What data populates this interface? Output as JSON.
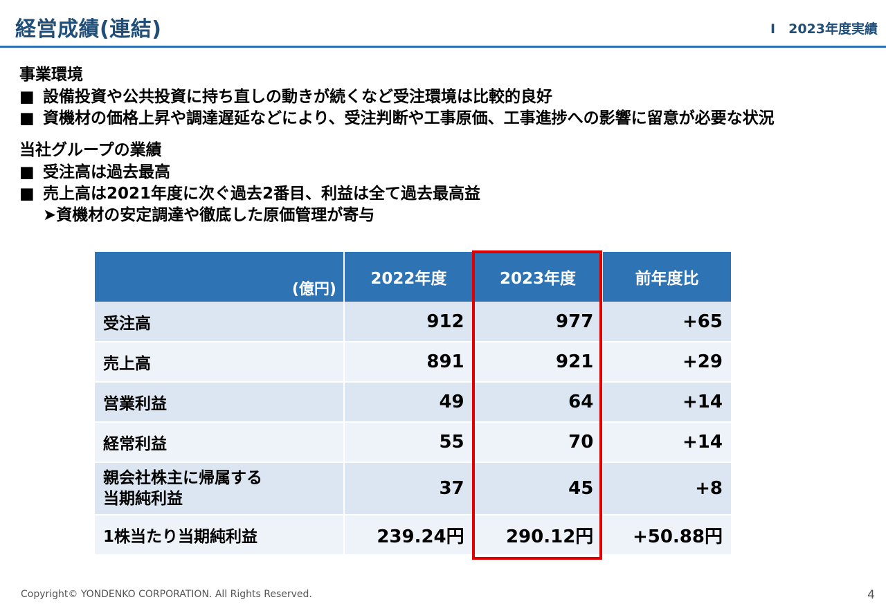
{
  "header": {
    "title": "経営成績(連結)",
    "section": "Ⅰ　2023年度実績"
  },
  "environment": {
    "heading": "事業環境",
    "bullet_mark": "■",
    "bullets": [
      "設備投資や公共投資に持ち直しの動きが続くなど受注環境は比較的良好",
      "資機材の価格上昇や調達遅延などにより、受注判断や工事原価、工事進捗への影響に留意が必要な状況"
    ]
  },
  "performance": {
    "heading": "当社グループの業績",
    "bullets": [
      "受注高は過去最高",
      "売上高は2021年度に次ぐ過去2番目、利益は全て過去最高益"
    ],
    "sub_bullet": "➤資機材の安定調達や徹底した原価管理が寄与"
  },
  "table": {
    "unit": "(億円)",
    "columns": [
      "2022年度",
      "2023年度",
      "前年度比"
    ],
    "highlight_column": "2023年度",
    "rows": [
      {
        "label": "受注高",
        "y2022": "912",
        "y2023": "977",
        "diff": "+65"
      },
      {
        "label": "売上高",
        "y2022": "891",
        "y2023": "921",
        "diff": "+29"
      },
      {
        "label": "営業利益",
        "y2022": "49",
        "y2023": "64",
        "diff": "+14"
      },
      {
        "label": "経常利益",
        "y2022": "55",
        "y2023": "70",
        "diff": "+14"
      },
      {
        "label_line1": "親会社株主に帰属する",
        "label_line2": "当期純利益",
        "y2022": "37",
        "y2023": "45",
        "diff": "+8"
      },
      {
        "label": "1株当たり当期純利益",
        "y2022": "239.24円",
        "y2023": "290.12円",
        "diff": "+50.88円"
      }
    ]
  },
  "footer": {
    "copyright": "Copyright© YONDENKO CORPORATION. All Rights Reserved.",
    "page_number": "4"
  },
  "colors": {
    "title": "#1f4e79",
    "header_rule": "#2e6fad",
    "table_header": "#2e74b5",
    "row_dark": "#dce6f2",
    "row_light": "#eef3f9",
    "highlight": "#e00000"
  }
}
